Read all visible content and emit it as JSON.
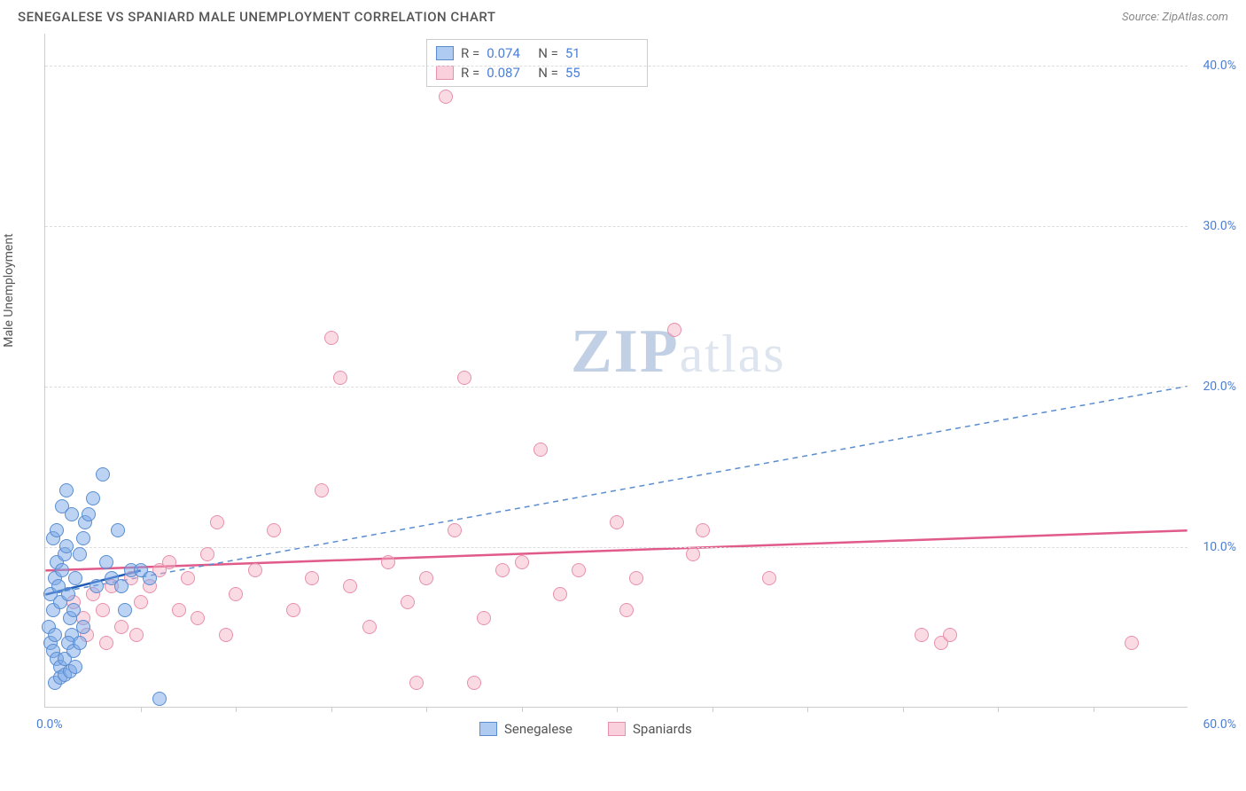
{
  "title": "SENEGALESE VS SPANIARD MALE UNEMPLOYMENT CORRELATION CHART",
  "source": "Source: ZipAtlas.com",
  "ylabel": "Male Unemployment",
  "watermark": {
    "main": "ZIP",
    "sub": "atlas"
  },
  "chart": {
    "type": "scatter",
    "background_color": "#ffffff",
    "grid_color": "#dddddd",
    "text_color": "#555555",
    "tick_color": "#4a7fd8",
    "xlim": [
      0,
      60
    ],
    "ylim": [
      0,
      42
    ],
    "xticks_minor_step": 5,
    "yticks": [
      10,
      20,
      30,
      40
    ],
    "ytick_labels": [
      "10.0%",
      "20.0%",
      "30.0%",
      "40.0%"
    ],
    "xtick_labels": {
      "min": "0.0%",
      "max": "60.0%"
    },
    "marker_size": 16,
    "title_fontsize": 15,
    "label_fontsize": 14,
    "series": {
      "senegalese": {
        "label": "Senegalese",
        "fill_color": "#7aa8e8",
        "border_color": "#5a8dd0",
        "fill_opacity": 0.5,
        "R": "0.074",
        "N": "51",
        "trend": {
          "x1": 0,
          "y1": 7.0,
          "x2": 60,
          "y2": 20.0,
          "color": "#5a8dd0",
          "dash": "6,5",
          "width": 1.5
        },
        "solid_segment": {
          "x1": 0,
          "y1": 7.0,
          "x2": 5,
          "y2": 8.5,
          "color": "#1e5bb8",
          "width": 2.5
        },
        "points": [
          [
            0.3,
            7.0
          ],
          [
            0.4,
            6.0
          ],
          [
            0.5,
            8.0
          ],
          [
            0.6,
            9.0
          ],
          [
            0.7,
            7.5
          ],
          [
            0.8,
            6.5
          ],
          [
            0.9,
            8.5
          ],
          [
            1.0,
            9.5
          ],
          [
            1.1,
            10.0
          ],
          [
            1.2,
            7.0
          ],
          [
            1.3,
            5.5
          ],
          [
            1.4,
            4.5
          ],
          [
            1.5,
            6.0
          ],
          [
            1.6,
            8.0
          ],
          [
            1.8,
            9.5
          ],
          [
            2.0,
            10.5
          ],
          [
            2.1,
            11.5
          ],
          [
            2.3,
            12.0
          ],
          [
            2.5,
            13.0
          ],
          [
            2.7,
            7.5
          ],
          [
            3.0,
            14.5
          ],
          [
            3.2,
            9.0
          ],
          [
            3.5,
            8.0
          ],
          [
            3.8,
            11.0
          ],
          [
            4.0,
            7.5
          ],
          [
            4.2,
            6.0
          ],
          [
            4.5,
            8.5
          ],
          [
            0.2,
            5.0
          ],
          [
            0.3,
            4.0
          ],
          [
            0.4,
            3.5
          ],
          [
            0.5,
            4.5
          ],
          [
            0.6,
            3.0
          ],
          [
            0.8,
            2.5
          ],
          [
            1.0,
            3.0
          ],
          [
            1.2,
            4.0
          ],
          [
            1.5,
            3.5
          ],
          [
            1.8,
            4.0
          ],
          [
            2.0,
            5.0
          ],
          [
            0.5,
            1.5
          ],
          [
            0.8,
            1.8
          ],
          [
            1.0,
            2.0
          ],
          [
            1.3,
            2.2
          ],
          [
            1.6,
            2.5
          ],
          [
            5.0,
            8.5
          ],
          [
            5.5,
            8.0
          ],
          [
            6.0,
            0.5
          ],
          [
            0.4,
            10.5
          ],
          [
            0.6,
            11.0
          ],
          [
            0.9,
            12.5
          ],
          [
            1.1,
            13.5
          ],
          [
            1.4,
            12.0
          ]
        ]
      },
      "spaniards": {
        "label": "Spaniards",
        "fill_color": "#f5b0c4",
        "border_color": "#e890ab",
        "fill_opacity": 0.45,
        "R": "0.087",
        "N": "55",
        "trend": {
          "x1": 0,
          "y1": 8.5,
          "x2": 60,
          "y2": 11.0,
          "color": "#e05a8a",
          "dash": "none",
          "width": 2.5
        },
        "points": [
          [
            1.5,
            6.5
          ],
          [
            2.0,
            5.5
          ],
          [
            2.5,
            7.0
          ],
          [
            3.0,
            6.0
          ],
          [
            3.5,
            7.5
          ],
          [
            4.0,
            5.0
          ],
          [
            4.5,
            8.0
          ],
          [
            5.0,
            6.5
          ],
          [
            5.5,
            7.5
          ],
          [
            6.0,
            8.5
          ],
          [
            6.5,
            9.0
          ],
          [
            7.0,
            6.0
          ],
          [
            7.5,
            8.0
          ],
          [
            8.0,
            5.5
          ],
          [
            8.5,
            9.5
          ],
          [
            9.0,
            11.5
          ],
          [
            9.5,
            4.5
          ],
          [
            10.0,
            7.0
          ],
          [
            11.0,
            8.5
          ],
          [
            12.0,
            11.0
          ],
          [
            13.0,
            6.0
          ],
          [
            14.0,
            8.0
          ],
          [
            14.5,
            13.5
          ],
          [
            15.0,
            23.0
          ],
          [
            15.5,
            20.5
          ],
          [
            16.0,
            7.5
          ],
          [
            17.0,
            5.0
          ],
          [
            18.0,
            9.0
          ],
          [
            19.0,
            6.5
          ],
          [
            19.5,
            1.5
          ],
          [
            20.0,
            8.0
          ],
          [
            21.0,
            38.0
          ],
          [
            21.5,
            11.0
          ],
          [
            22.0,
            20.5
          ],
          [
            22.5,
            1.5
          ],
          [
            23.0,
            5.5
          ],
          [
            24.0,
            8.5
          ],
          [
            25.0,
            9.0
          ],
          [
            26.0,
            16.0
          ],
          [
            27.0,
            7.0
          ],
          [
            28.0,
            8.5
          ],
          [
            30.0,
            11.5
          ],
          [
            30.5,
            6.0
          ],
          [
            31.0,
            8.0
          ],
          [
            33.0,
            23.5
          ],
          [
            34.0,
            9.5
          ],
          [
            34.5,
            11.0
          ],
          [
            38.0,
            8.0
          ],
          [
            46.0,
            4.5
          ],
          [
            47.0,
            4.0
          ],
          [
            47.5,
            4.5
          ],
          [
            57.0,
            4.0
          ],
          [
            2.2,
            4.5
          ],
          [
            3.2,
            4.0
          ],
          [
            4.8,
            4.5
          ]
        ]
      }
    }
  },
  "legend_top": [
    {
      "swatch": "blue",
      "r_label": "R =",
      "r_val": "0.074",
      "n_label": "N =",
      "n_val": "51"
    },
    {
      "swatch": "pink",
      "r_label": "R =",
      "r_val": "0.087",
      "n_label": "N =",
      "n_val": "55"
    }
  ],
  "legend_bottom": [
    {
      "swatch": "blue",
      "label": "Senegalese"
    },
    {
      "swatch": "pink",
      "label": "Spaniards"
    }
  ]
}
